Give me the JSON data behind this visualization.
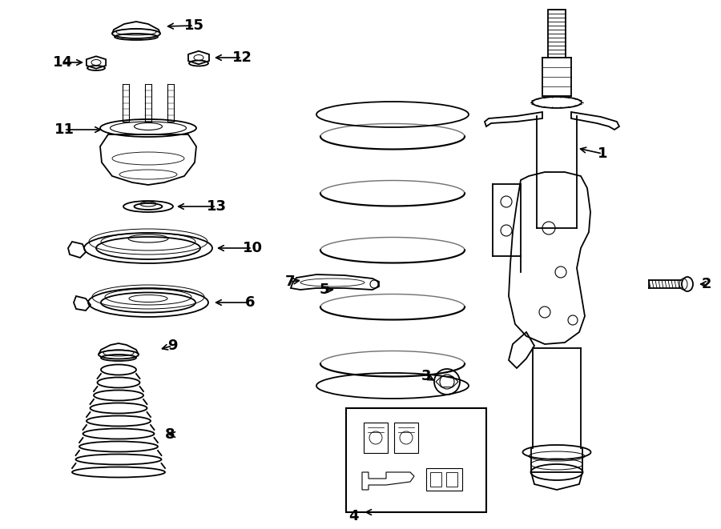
{
  "bg_color": "#ffffff",
  "line_color": "#000000",
  "lw": 1.3,
  "parts": [
    1,
    2,
    3,
    4,
    5,
    6,
    7,
    8,
    9,
    10,
    11,
    12,
    13,
    14,
    15
  ],
  "fig_w": 9.0,
  "fig_h": 6.61,
  "dpi": 100
}
